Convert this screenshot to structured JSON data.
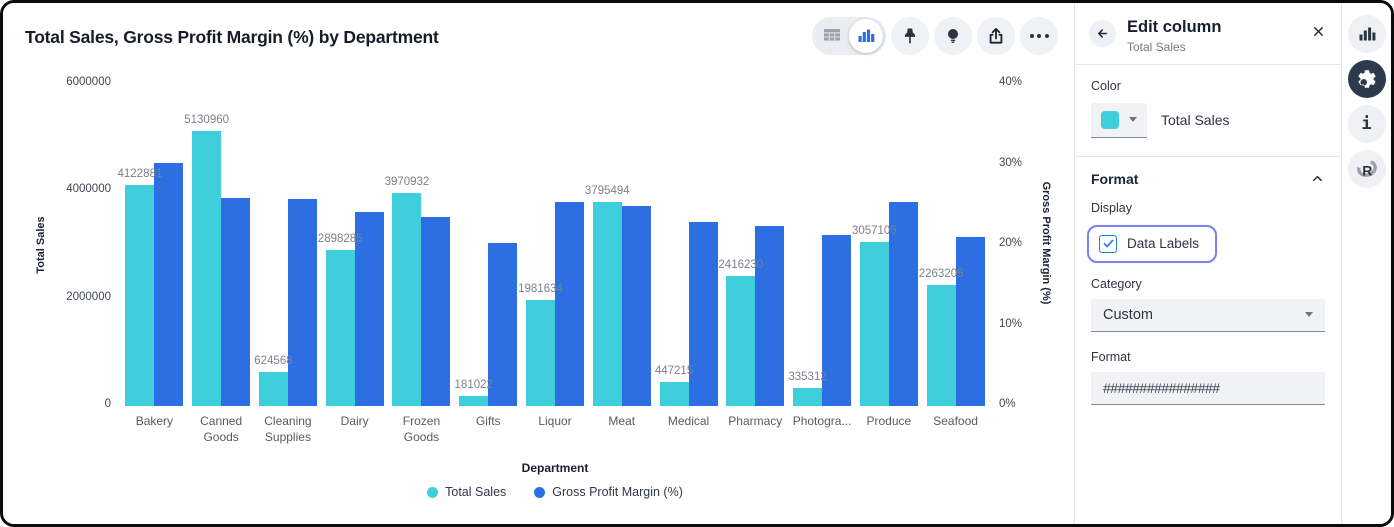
{
  "chart_data": {
    "type": "bar",
    "title": "Total Sales, Gross Profit Margin (%) by Department",
    "categories": [
      "Bakery",
      "Canned Goods",
      "Cleaning Supplies",
      "Dairy",
      "Frozen Goods",
      "Gifts",
      "Liquor",
      "Meat",
      "Medical",
      "Pharmacy",
      "Photogra...",
      "Produce",
      "Seafood"
    ],
    "series": [
      {
        "name": "Total Sales",
        "axis": "left",
        "color": "#3FCFDC",
        "values": [
          4122881,
          5130960,
          624568,
          2898285,
          3970932,
          181022,
          1981634,
          3795494,
          447215,
          2416230,
          335312,
          3057105,
          2263205
        ],
        "data_labels": true
      },
      {
        "name": "Gross Profit Margin (%)",
        "axis": "right",
        "color": "#2D6FE3",
        "values": [
          30.2,
          25.9,
          25.7,
          24.1,
          23.5,
          20.3,
          25.3,
          24.8,
          22.9,
          22.4,
          21.2,
          25.4,
          21.0
        ],
        "data_labels": false
      }
    ],
    "xlabel": "Department",
    "ylabel_left": "Total Sales",
    "ylabel_right": "Gross Profit Margin (%)",
    "ylim_left": [
      0,
      6000000
    ],
    "ylim_right": [
      0,
      40
    ],
    "y_left_ticks": [
      0,
      2000000,
      4000000,
      6000000
    ],
    "y_right_ticks": [
      0,
      10,
      20,
      30,
      40
    ],
    "legend_position": "bottom",
    "grid": false
  },
  "toolbar": {
    "items": [
      "table-view",
      "chart-view",
      "pin",
      "lightbulb",
      "export",
      "more"
    ],
    "active_view": "chart-view"
  },
  "panel": {
    "header": {
      "title": "Edit column",
      "subtitle": "Total Sales"
    },
    "color": {
      "label": "Color",
      "swatch_color": "#3FCFDC",
      "value": "Total Sales"
    },
    "format": {
      "header": "Format",
      "display_label": "Display",
      "checkbox_label": "Data Labels",
      "checkbox_checked": true,
      "highlight_color": "#7B80F2",
      "category_label": "Category",
      "category_value": "Custom",
      "format_label": "Format",
      "format_value": "################"
    }
  },
  "rail": {
    "items": [
      "chart-type",
      "settings",
      "info",
      "r-logo"
    ],
    "active": "settings"
  }
}
